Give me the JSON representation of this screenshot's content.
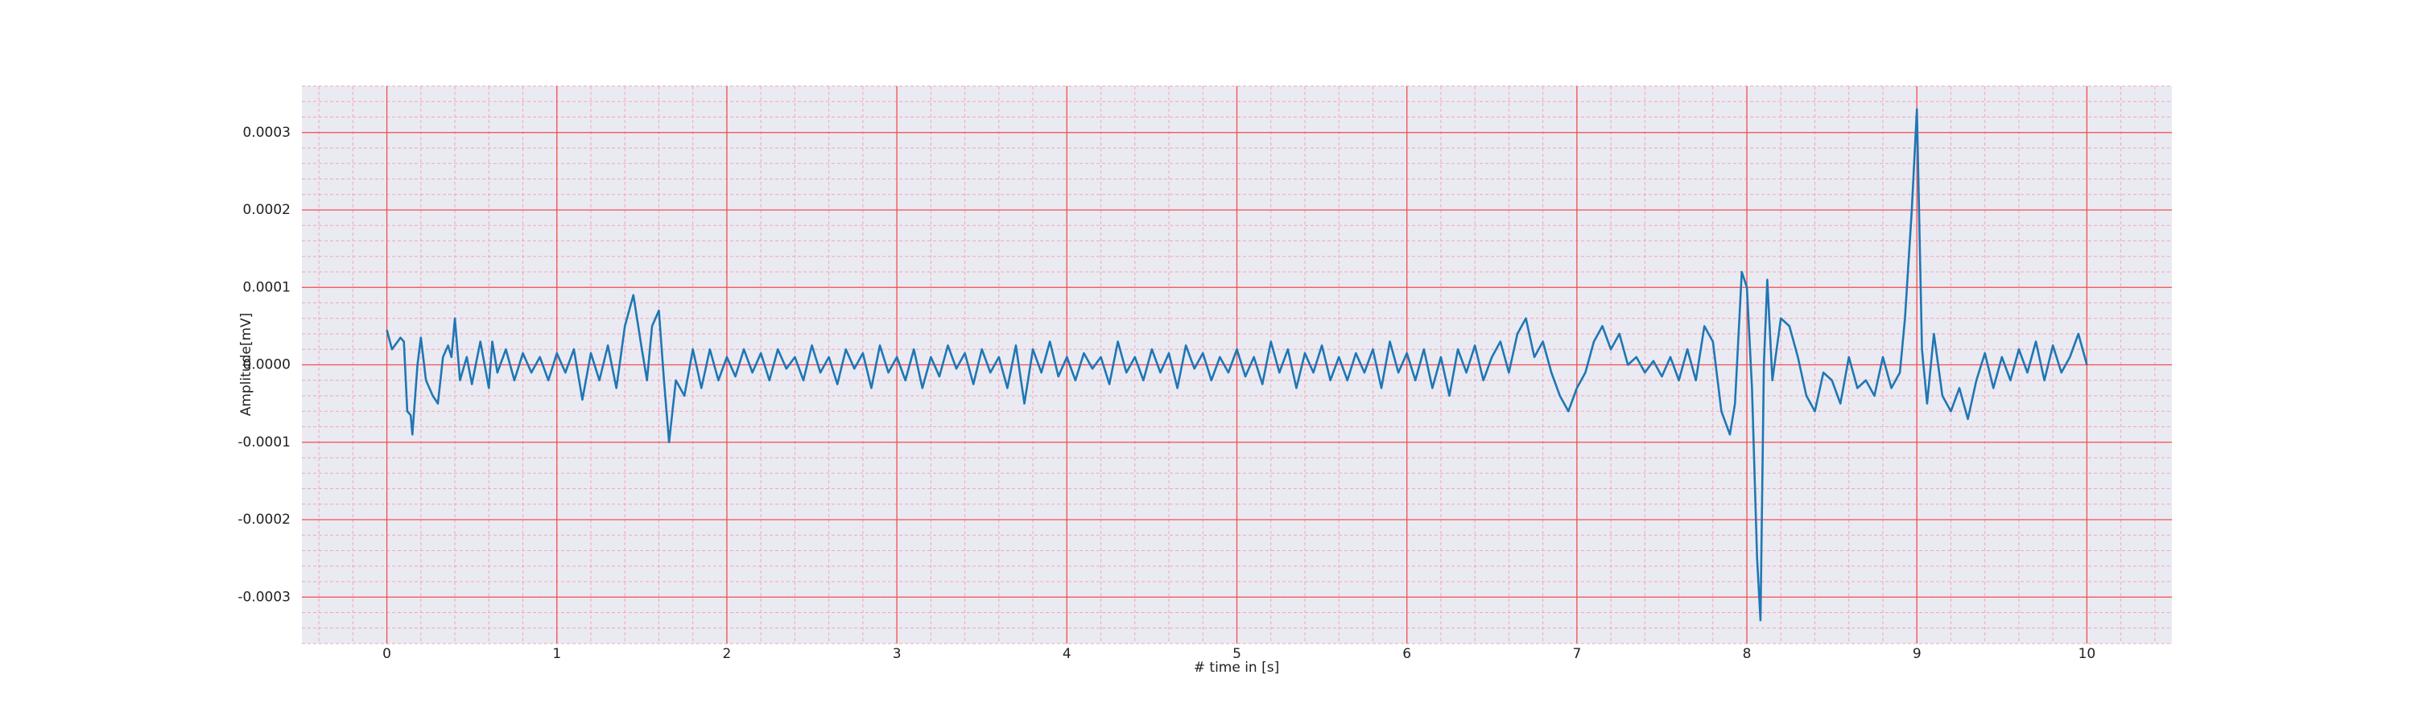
{
  "chart_data": {
    "type": "line",
    "xlabel": "# time in [s]",
    "ylabel": "Amplitude[mV]",
    "xlim": [
      -0.5,
      10.5
    ],
    "ylim": [
      -0.00036,
      0.00036
    ],
    "xticks": [
      0,
      1,
      2,
      3,
      4,
      5,
      6,
      7,
      8,
      9,
      10
    ],
    "yticks": [
      -0.0003,
      -0.0002,
      -0.0001,
      {
        "value": 0,
        "label": "0.0000"
      },
      0.0001,
      0.0002,
      0.0003
    ],
    "grid": true,
    "minor_grid": true,
    "color": "#1f77b4",
    "x": [
      0,
      0.03,
      0.08,
      0.1,
      0.12,
      0.14,
      0.15,
      0.18,
      0.2,
      0.23,
      0.27,
      0.3,
      0.33,
      0.36,
      0.38,
      0.4,
      0.43,
      0.47,
      0.5,
      0.55,
      0.6,
      0.62,
      0.65,
      0.7,
      0.75,
      0.8,
      0.85,
      0.9,
      0.95,
      1.0,
      1.05,
      1.1,
      1.15,
      1.2,
      1.25,
      1.3,
      1.35,
      1.4,
      1.45,
      1.5,
      1.53,
      1.56,
      1.6,
      1.63,
      1.66,
      1.7,
      1.75,
      1.8,
      1.85,
      1.9,
      1.95,
      2.0,
      2.05,
      2.1,
      2.15,
      2.2,
      2.25,
      2.3,
      2.35,
      2.4,
      2.45,
      2.5,
      2.55,
      2.6,
      2.65,
      2.7,
      2.75,
      2.8,
      2.85,
      2.9,
      2.95,
      3.0,
      3.05,
      3.1,
      3.15,
      3.2,
      3.25,
      3.3,
      3.35,
      3.4,
      3.45,
      3.5,
      3.55,
      3.6,
      3.65,
      3.7,
      3.75,
      3.8,
      3.85,
      3.9,
      3.95,
      4.0,
      4.05,
      4.1,
      4.15,
      4.2,
      4.25,
      4.3,
      4.35,
      4.4,
      4.45,
      4.5,
      4.55,
      4.6,
      4.65,
      4.7,
      4.75,
      4.8,
      4.85,
      4.9,
      4.95,
      5.0,
      5.05,
      5.1,
      5.15,
      5.2,
      5.25,
      5.3,
      5.35,
      5.4,
      5.45,
      5.5,
      5.55,
      5.6,
      5.65,
      5.7,
      5.75,
      5.8,
      5.85,
      5.9,
      5.95,
      6.0,
      6.05,
      6.1,
      6.15,
      6.2,
      6.25,
      6.3,
      6.35,
      6.4,
      6.45,
      6.5,
      6.55,
      6.6,
      6.65,
      6.7,
      6.75,
      6.8,
      6.85,
      6.9,
      6.95,
      7.0,
      7.05,
      7.1,
      7.15,
      7.2,
      7.25,
      7.3,
      7.35,
      7.4,
      7.45,
      7.5,
      7.55,
      7.6,
      7.65,
      7.7,
      7.75,
      7.8,
      7.85,
      7.9,
      7.93,
      7.97,
      8.0,
      8.03,
      8.06,
      8.08,
      8.1,
      8.12,
      8.15,
      8.2,
      8.25,
      8.3,
      8.35,
      8.4,
      8.45,
      8.5,
      8.55,
      8.6,
      8.65,
      8.7,
      8.75,
      8.8,
      8.85,
      8.9,
      8.93,
      8.97,
      9.0,
      9.03,
      9.06,
      9.1,
      9.15,
      9.2,
      9.25,
      9.3,
      9.35,
      9.4,
      9.45,
      9.5,
      9.55,
      9.6,
      9.65,
      9.7,
      9.75,
      9.8,
      9.85,
      9.9,
      9.95,
      10.0
    ],
    "values": [
      4.5e-05,
      2e-05,
      3.5e-05,
      3e-05,
      -6e-05,
      -6.5e-05,
      -9e-05,
      0,
      3.5e-05,
      -2e-05,
      -4e-05,
      -5e-05,
      1e-05,
      2.5e-05,
      1e-05,
      6e-05,
      -2e-05,
      1e-05,
      -2.5e-05,
      3e-05,
      -3e-05,
      3e-05,
      -1e-05,
      2e-05,
      -2e-05,
      1.5e-05,
      -1e-05,
      1e-05,
      -2e-05,
      1.5e-05,
      -1e-05,
      2e-05,
      -4.5e-05,
      1.5e-05,
      -2e-05,
      2.5e-05,
      -3e-05,
      5e-05,
      9e-05,
      2e-05,
      -2e-05,
      5e-05,
      7e-05,
      -2e-05,
      -0.0001,
      -2e-05,
      -4e-05,
      2e-05,
      -3e-05,
      2e-05,
      -2e-05,
      1e-05,
      -1.5e-05,
      2e-05,
      -1e-05,
      1.5e-05,
      -2e-05,
      2e-05,
      -5e-06,
      1e-05,
      -2e-05,
      2.5e-05,
      -1e-05,
      1e-05,
      -2.5e-05,
      2e-05,
      -5e-06,
      1.5e-05,
      -3e-05,
      2.5e-05,
      -1e-05,
      1e-05,
      -2e-05,
      2e-05,
      -3e-05,
      1e-05,
      -1.5e-05,
      2.5e-05,
      -5e-06,
      1.5e-05,
      -2.5e-05,
      2e-05,
      -1e-05,
      1e-05,
      -3e-05,
      2.5e-05,
      -5e-05,
      2e-05,
      -1e-05,
      3e-05,
      -1.5e-05,
      1e-05,
      -2e-05,
      1.5e-05,
      -5e-06,
      1e-05,
      -2.5e-05,
      3e-05,
      -1e-05,
      1e-05,
      -2e-05,
      2e-05,
      -1e-05,
      1.5e-05,
      -3e-05,
      2.5e-05,
      -5e-06,
      1.5e-05,
      -2e-05,
      1e-05,
      -1e-05,
      2e-05,
      -1.5e-05,
      1e-05,
      -2.5e-05,
      3e-05,
      -1e-05,
      2e-05,
      -3e-05,
      1.5e-05,
      -1e-05,
      2.5e-05,
      -2e-05,
      1e-05,
      -2e-05,
      1.5e-05,
      -1e-05,
      2e-05,
      -3e-05,
      3e-05,
      -1e-05,
      1.5e-05,
      -2e-05,
      2e-05,
      -3e-05,
      1e-05,
      -4e-05,
      2e-05,
      -1e-05,
      2.5e-05,
      -2e-05,
      1e-05,
      3e-05,
      -1e-05,
      4e-05,
      6e-05,
      1e-05,
      3e-05,
      -1e-05,
      -4e-05,
      -6e-05,
      -3e-05,
      -1e-05,
      3e-05,
      5e-05,
      2e-05,
      4e-05,
      0,
      1e-05,
      -1e-05,
      5e-06,
      -1.5e-05,
      1e-05,
      -2e-05,
      2e-05,
      -2e-05,
      5e-05,
      3e-05,
      -6e-05,
      -9e-05,
      -5e-05,
      0.00012,
      0.0001,
      -3e-05,
      -0.00025,
      -0.00033,
      0,
      0.00011,
      -2e-05,
      6e-05,
      5e-05,
      1e-05,
      -4e-05,
      -6e-05,
      -1e-05,
      -2e-05,
      -5e-05,
      1e-05,
      -3e-05,
      -2e-05,
      -4e-05,
      1e-05,
      -3e-05,
      -1e-05,
      6e-05,
      0.0002,
      0.00033,
      2e-05,
      -5e-05,
      4e-05,
      -4e-05,
      -6e-05,
      -3e-05,
      -7e-05,
      -2e-05,
      1.5e-05,
      -3e-05,
      1e-05,
      -2e-05,
      2e-05,
      -1e-05,
      3e-05,
      -2e-05,
      2.5e-05,
      -1e-05,
      1e-05,
      4e-05,
      0
    ]
  }
}
